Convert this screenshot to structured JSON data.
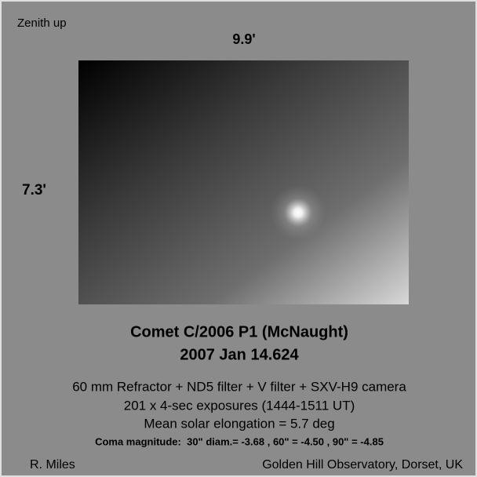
{
  "header": {
    "orientation": "Zenith up"
  },
  "image": {
    "width_label": "9.9'",
    "height_label": "7.3'"
  },
  "caption": {
    "title": "Comet C/2006 P1 (McNaught)",
    "date": "2007 Jan 14.624"
  },
  "details": [
    "60 mm Refractor + ND5 filter + V filter + SXV-H9 camera",
    "201 x 4-sec exposures (1444-1511 UT)",
    "Mean solar elongation = 5.7 deg"
  ],
  "coma": "Coma magnitude:  30\" diam.= -3.68 , 60\" = -4.50 , 90\" = -4.85",
  "credits": {
    "author": "R. Miles",
    "observatory": "Golden Hill Observatory, Dorset, UK"
  }
}
